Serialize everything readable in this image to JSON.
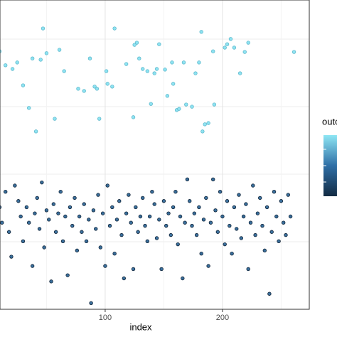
{
  "chart_data": {
    "type": "scatter",
    "x_label": "index",
    "legend_title": "outc",
    "xlim": [
      -3,
      274
    ],
    "xticks": [
      100,
      200
    ],
    "x_minor_ticks": [
      50,
      150,
      250
    ],
    "ylim": [
      0,
      100
    ],
    "grid": true,
    "series": [
      {
        "color": "#8fe3f2",
        "stroke": "#5fb9cc",
        "x": [
          10,
          15,
          21,
          25,
          30,
          35,
          38,
          41,
          45,
          47,
          50,
          57,
          61,
          65,
          77,
          82,
          87,
          91,
          93,
          95,
          101,
          102,
          106,
          108,
          118,
          124,
          125,
          127,
          129,
          132,
          136,
          139,
          142,
          144,
          146,
          151,
          153,
          157,
          158,
          161,
          163,
          167,
          169,
          174,
          177,
          180,
          182,
          183,
          185,
          188,
          192,
          193,
          202,
          204,
          207,
          210,
          215,
          219,
          222,
          261
        ],
        "values": [
          83.4,
          78.9,
          77.7,
          79.8,
          72.4,
          65.1,
          81.1,
          57.5,
          80.7,
          90.8,
          82.8,
          61.6,
          83.9,
          77,
          71.3,
          70.6,
          81.1,
          72,
          71.3,
          61.6,
          77,
          72.9,
          72,
          90.8,
          79.3,
          62.1,
          85.5,
          86.2,
          81.1,
          77.7,
          77,
          66.4,
          76.3,
          77.7,
          85.7,
          77.5,
          69,
          79.8,
          72.9,
          64.4,
          64.8,
          79.8,
          66.2,
          65.5,
          76.3,
          79.8,
          89.7,
          57.5,
          59.8,
          60.2,
          83.4,
          66.2,
          84.6,
          85.7,
          87.4,
          84.6,
          76.3,
          83.2,
          86.2,
          83.2
        ]
      },
      {
        "color": "#3a6f9c",
        "stroke": "#0f2236",
        "x": [
          10,
          12,
          15,
          18,
          20,
          23,
          26,
          28,
          30,
          33,
          35,
          38,
          40,
          42,
          44,
          46,
          48,
          50,
          52,
          54,
          56,
          58,
          60,
          62,
          64,
          66,
          68,
          70,
          72,
          74,
          76,
          78,
          80,
          82,
          84,
          86,
          88,
          90,
          92,
          94,
          96,
          98,
          100,
          102,
          104,
          106,
          108,
          110,
          112,
          114,
          116,
          118,
          120,
          122,
          124,
          126,
          128,
          130,
          132,
          134,
          136,
          138,
          140,
          142,
          144,
          146,
          148,
          150,
          152,
          154,
          156,
          158,
          160,
          162,
          164,
          166,
          168,
          170,
          172,
          174,
          176,
          178,
          180,
          182,
          184,
          186,
          188,
          190,
          192,
          194,
          196,
          198,
          200,
          202,
          204,
          206,
          208,
          210,
          212,
          214,
          216,
          218,
          220,
          222,
          224,
          226,
          228,
          230,
          232,
          234,
          236,
          238,
          240,
          242,
          244,
          246,
          248,
          250,
          252,
          254,
          256,
          258
        ],
        "values": [
          33,
          28,
          38,
          25,
          17,
          40,
          35,
          30,
          22,
          33,
          28,
          14,
          31,
          36,
          26,
          41,
          20,
          32,
          29,
          9,
          34,
          25,
          31,
          38,
          22,
          30,
          11,
          33,
          27,
          36,
          19,
          30,
          25,
          34,
          22,
          29,
          2,
          32,
          26,
          37,
          20,
          31,
          14,
          40,
          27,
          33,
          18,
          29,
          35,
          24,
          10,
          31,
          37,
          28,
          13,
          33,
          25,
          30,
          36,
          27,
          22,
          30,
          38,
          34,
          23,
          29,
          13,
          35,
          27,
          31,
          24,
          33,
          38,
          21,
          30,
          10,
          28,
          42,
          35,
          27,
          31,
          24,
          33,
          18,
          29,
          36,
          14,
          28,
          42,
          32,
          25,
          38,
          30,
          21,
          35,
          27,
          18,
          33,
          26,
          37,
          23,
          30,
          34,
          13,
          28,
          40,
          24,
          31,
          36,
          27,
          19,
          33,
          5,
          25,
          38,
          30,
          22,
          35,
          28,
          24,
          37,
          30
        ]
      }
    ]
  }
}
